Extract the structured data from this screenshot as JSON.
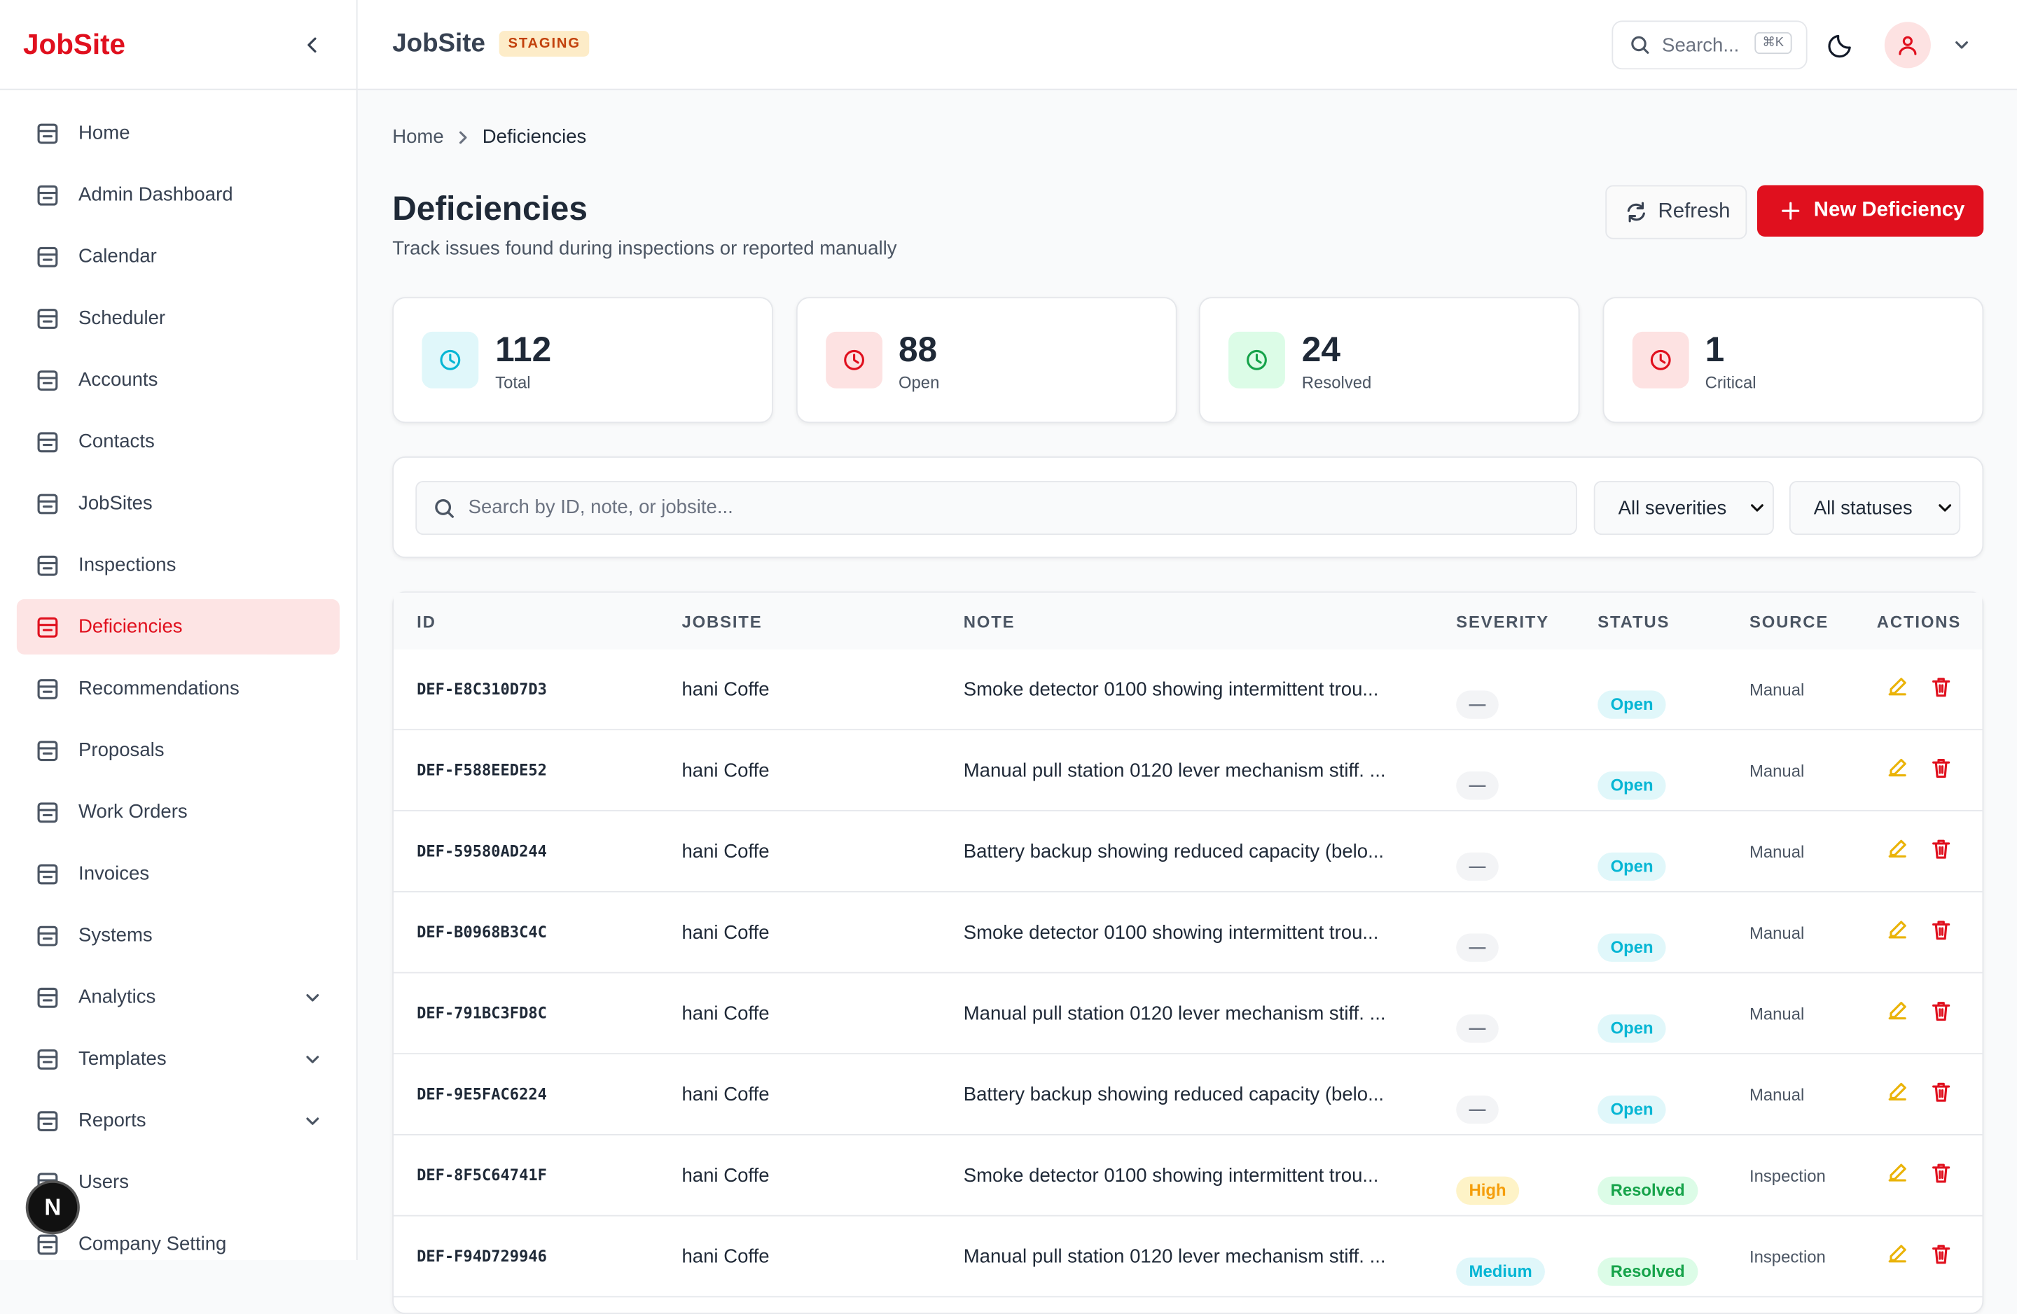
{
  "sidebar": {
    "brand": "JobSite",
    "nav": [
      {
        "label": "Home"
      },
      {
        "label": "Admin Dashboard"
      },
      {
        "label": "Calendar"
      },
      {
        "label": "Scheduler"
      },
      {
        "label": "Accounts"
      },
      {
        "label": "Contacts"
      },
      {
        "label": "JobSites"
      },
      {
        "label": "Inspections"
      },
      {
        "label": "Deficiencies",
        "active": true
      },
      {
        "label": "Recommendations"
      },
      {
        "label": "Proposals"
      },
      {
        "label": "Work Orders"
      },
      {
        "label": "Invoices"
      },
      {
        "label": "Systems"
      },
      {
        "label": "Analytics",
        "expandable": true
      },
      {
        "label": "Templates",
        "expandable": true
      },
      {
        "label": "Reports",
        "expandable": true
      },
      {
        "label": "Users"
      },
      {
        "label": "Company Setting"
      }
    ]
  },
  "header": {
    "title": "JobSite",
    "badge": "STAGING",
    "search": "Search...",
    "shortcut": "⌘K"
  },
  "breadcrumb": [
    "Home",
    "Deficiencies"
  ],
  "page": {
    "title": "Deficiencies",
    "subtitle": "Track issues found during inspections or reported manually",
    "refresh": "Refresh",
    "new": "New Deficiency"
  },
  "stats": [
    {
      "value": 112,
      "label": "Total"
    },
    {
      "value": 88,
      "label": "Open"
    },
    {
      "value": 24,
      "label": "Resolved"
    },
    {
      "value": 1,
      "label": "Critical"
    }
  ],
  "filters": {
    "search": "Search by ID, note, or jobsite...",
    "severity": "All severities",
    "status": "All statuses"
  },
  "table": {
    "columns": [
      "ID",
      "JOBSITE",
      "NOTE",
      "SEVERITY",
      "STATUS",
      "SOURCE",
      "ACTIONS"
    ],
    "rows": [
      [
        "DEF-E8C310D7D3",
        "hani Coffe",
        "Smoke detector 0100 showing intermittent trou...",
        "—",
        "Open",
        "Manual"
      ],
      [
        "DEF-F588EEDE52",
        "hani Coffe",
        "Manual pull station 0120 lever mechanism stiff. ...",
        "—",
        "Open",
        "Manual"
      ],
      [
        "DEF-59580AD244",
        "hani Coffe",
        "Battery backup showing reduced capacity (belo...",
        "—",
        "Open",
        "Manual"
      ],
      [
        "DEF-B0968B3C4C",
        "hani Coffe",
        "Smoke detector 0100 showing intermittent trou...",
        "—",
        "Open",
        "Manual"
      ],
      [
        "DEF-791BC3FD8C",
        "hani Coffe",
        "Manual pull station 0120 lever mechanism stiff. ...",
        "—",
        "Open",
        "Manual"
      ],
      [
        "DEF-9E5FAC6224",
        "hani Coffe",
        "Battery backup showing reduced capacity (belo...",
        "—",
        "Open",
        "Manual"
      ],
      [
        "DEF-8F5C64741F",
        "hani Coffe",
        "Smoke detector 0100 showing intermittent trou...",
        "High",
        "Resolved",
        "Inspection"
      ],
      [
        "DEF-F94D729946",
        "hani Coffe",
        "Manual pull station 0120 lever mechanism stiff. ...",
        "Medium",
        "Resolved",
        "Inspection"
      ]
    ]
  },
  "widget": "N"
}
